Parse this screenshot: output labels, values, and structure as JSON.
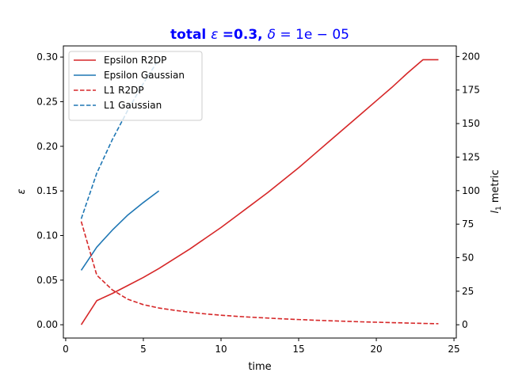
{
  "chart_data": {
    "type": "line",
    "title": {
      "prefix": "total ",
      "eps_symbol": "ε",
      "eps_value": " =0.3, ",
      "delta_symbol": "δ",
      "delta_value": " = 1e − 05",
      "color": "#0000ff"
    },
    "xlabel": "time",
    "ylabel_left": "ε",
    "ylabel_right_main": "l",
    "ylabel_right_sub": "1",
    "ylabel_right_rest": " metric",
    "xlim": [
      -0.15,
      25.15
    ],
    "ylim_left": [
      -0.0149,
      0.3125
    ],
    "ylim_right": [
      -9.9,
      207.9
    ],
    "x_ticks": [
      0,
      5,
      10,
      15,
      20,
      25
    ],
    "y_left_ticks": [
      "0.00",
      "0.05",
      "0.10",
      "0.15",
      "0.20",
      "0.25",
      "0.30"
    ],
    "y_right_ticks": [
      "0",
      "25",
      "50",
      "75",
      "100",
      "125",
      "150",
      "175",
      "200"
    ],
    "legend_position": "top-left",
    "series": [
      {
        "name": "Epsilon R2DP",
        "axis": "left",
        "color": "#d62728",
        "dash": "solid",
        "x": [
          1,
          2,
          3,
          4,
          5,
          6,
          7,
          8,
          9,
          10,
          11,
          12,
          13,
          14,
          15,
          16,
          17,
          18,
          19,
          20,
          21,
          22,
          23,
          24
        ],
        "y": [
          0.0,
          0.027,
          0.035,
          0.044,
          0.053,
          0.063,
          0.074,
          0.085,
          0.097,
          0.109,
          0.122,
          0.135,
          0.148,
          0.162,
          0.176,
          0.191,
          0.206,
          0.221,
          0.236,
          0.251,
          0.266,
          0.282,
          0.297,
          0.297
        ]
      },
      {
        "name": "Epsilon Gaussian",
        "axis": "left",
        "color": "#1f77b4",
        "dash": "solid",
        "x": [
          1,
          2,
          3,
          4,
          5,
          6
        ],
        "y": [
          0.061,
          0.087,
          0.106,
          0.123,
          0.137,
          0.15
        ]
      },
      {
        "name": "L1 R2DP",
        "axis": "right",
        "color": "#d62728",
        "dash": "dashed",
        "x": [
          1,
          2,
          3,
          4,
          5,
          6,
          7,
          8,
          9,
          10,
          11,
          12,
          13,
          14,
          15,
          16,
          17,
          18,
          19,
          20,
          21,
          22,
          23,
          24
        ],
        "y": [
          77,
          37,
          26,
          19,
          15,
          12.5,
          10.8,
          9.3,
          8.1,
          7.1,
          6.3,
          5.6,
          5.0,
          4.4,
          3.9,
          3.4,
          3.0,
          2.6,
          2.2,
          1.9,
          1.6,
          1.3,
          1.0,
          0.8
        ]
      },
      {
        "name": "L1 Gaussian",
        "axis": "right",
        "color": "#1f77b4",
        "dash": "dashed",
        "x": [
          1,
          2,
          3,
          4,
          5,
          6
        ],
        "y": [
          79,
          113,
          138,
          160,
          180,
          198
        ]
      }
    ]
  }
}
